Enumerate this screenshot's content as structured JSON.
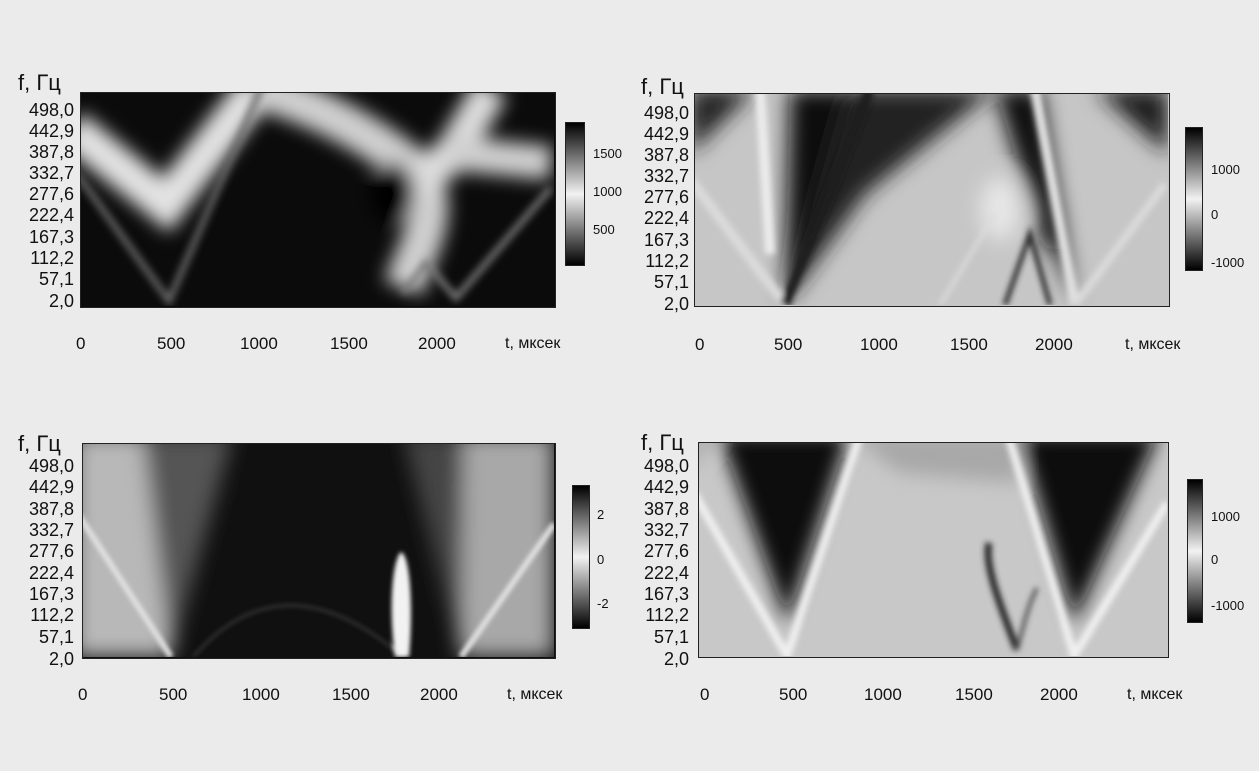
{
  "chart_data": [
    {
      "type": "heatmap",
      "ylabel": "f, Гц",
      "xlabel": "t, мксек",
      "y_ticks": [
        "498,0",
        "442,9",
        "387,8",
        "332,7",
        "277,6",
        "222,4",
        "167,3",
        "112,2",
        "57,1",
        "2,0"
      ],
      "x_ticks": [
        "0",
        "500",
        "1000",
        "1500",
        "2000"
      ],
      "xlim": [
        0,
        2650
      ],
      "ylim": [
        2.0,
        553.1
      ],
      "colorbar_ticks": [
        "1500",
        "1000",
        "500"
      ],
      "colorbar_range": [
        200,
        1800
      ]
    },
    {
      "type": "heatmap",
      "ylabel": "f, Гц",
      "xlabel": "t, мксек",
      "y_ticks": [
        "498,0",
        "442,9",
        "387,8",
        "332,7",
        "277,6",
        "222,4",
        "167,3",
        "112,2",
        "57,1",
        "2,0"
      ],
      "x_ticks": [
        "0",
        "500",
        "1000",
        "1500",
        "2000"
      ],
      "xlim": [
        0,
        2650
      ],
      "ylim": [
        2.0,
        553.1
      ],
      "colorbar_ticks": [
        "1000",
        "0",
        "-1000"
      ],
      "colorbar_range": [
        -1500,
        1500
      ]
    },
    {
      "type": "heatmap",
      "ylabel": "f, Гц",
      "xlabel": "t, мксек",
      "y_ticks": [
        "498,0",
        "442,9",
        "387,8",
        "332,7",
        "277,6",
        "222,4",
        "167,3",
        "112,2",
        "57,1",
        "2,0"
      ],
      "x_ticks": [
        "0",
        "500",
        "1000",
        "1500",
        "2000"
      ],
      "xlim": [
        0,
        2650
      ],
      "ylim": [
        2.0,
        553.1
      ],
      "colorbar_ticks": [
        "2",
        "0",
        "-2"
      ],
      "colorbar_range": [
        -3,
        3
      ]
    },
    {
      "type": "heatmap",
      "ylabel": "f, Гц",
      "xlabel": "t, мксек",
      "y_ticks": [
        "498,0",
        "442,9",
        "387,8",
        "332,7",
        "277,6",
        "222,4",
        "167,3",
        "112,2",
        "57,1",
        "2,0"
      ],
      "x_ticks": [
        "0",
        "500",
        "1000",
        "1500",
        "2000"
      ],
      "xlim": [
        0,
        2650
      ],
      "ylim": [
        2.0,
        553.1
      ],
      "colorbar_ticks": [
        "1000",
        "0",
        "-1000"
      ],
      "colorbar_range": [
        -1500,
        1500
      ]
    }
  ]
}
